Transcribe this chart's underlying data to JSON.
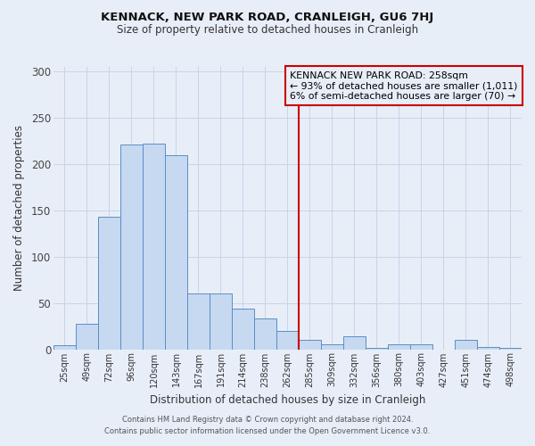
{
  "title": "KENNACK, NEW PARK ROAD, CRANLEIGH, GU6 7HJ",
  "subtitle": "Size of property relative to detached houses in Cranleigh",
  "xlabel": "Distribution of detached houses by size in Cranleigh",
  "ylabel": "Number of detached properties",
  "bar_labels": [
    "25sqm",
    "49sqm",
    "72sqm",
    "96sqm",
    "120sqm",
    "143sqm",
    "167sqm",
    "191sqm",
    "214sqm",
    "238sqm",
    "262sqm",
    "285sqm",
    "309sqm",
    "332sqm",
    "356sqm",
    "380sqm",
    "403sqm",
    "427sqm",
    "451sqm",
    "474sqm",
    "498sqm"
  ],
  "bar_values": [
    4,
    27,
    143,
    221,
    222,
    210,
    60,
    60,
    44,
    33,
    20,
    10,
    5,
    14,
    1,
    5,
    5,
    0,
    10,
    2,
    1
  ],
  "bar_color": "#c6d9f1",
  "bar_edge_color": "#5b8ec4",
  "vline_x": 10.5,
  "vline_color": "#cc0000",
  "annotation_title": "KENNACK NEW PARK ROAD: 258sqm",
  "annotation_line1": "← 93% of detached houses are smaller (1,011)",
  "annotation_line2": "6% of semi-detached houses are larger (70) →",
  "annotation_box_color": "#cc0000",
  "annotation_fill": "#e8eef8",
  "ylim": [
    0,
    305
  ],
  "yticks": [
    0,
    50,
    100,
    150,
    200,
    250,
    300
  ],
  "grid_color": "#c8d4e8",
  "bg_color": "#e8eef8",
  "footer1": "Contains HM Land Registry data © Crown copyright and database right 2024.",
  "footer2": "Contains public sector information licensed under the Open Government Licence v3.0."
}
